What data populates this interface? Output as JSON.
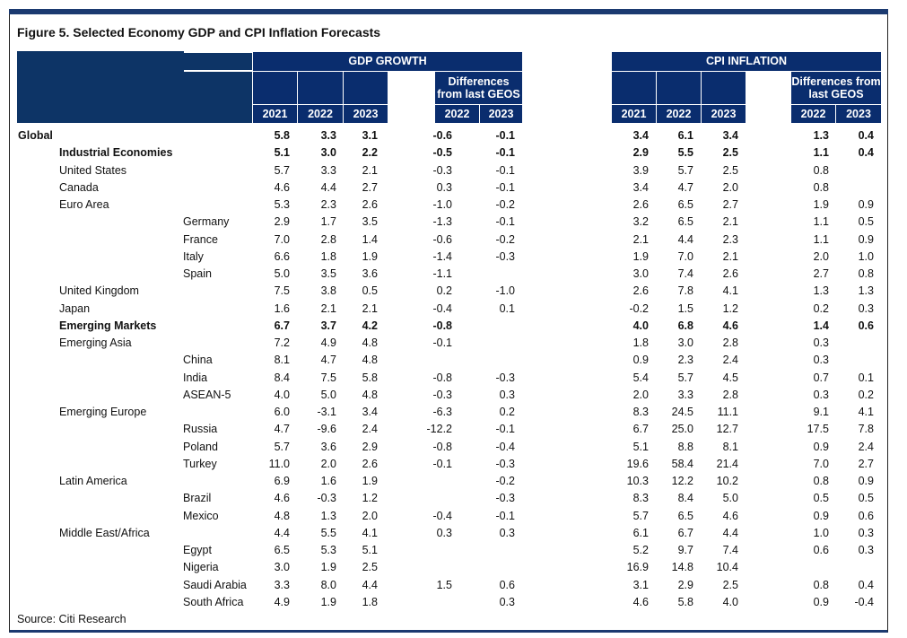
{
  "title": "Figure 5. Selected Economy GDP and CPI Inflation Forecasts",
  "source": "Source: Citi Research",
  "colors": {
    "header": "#0a2d6e",
    "top_bar": "#1b3a70"
  },
  "gdp_header": "GDP GROWTH",
  "cpi_header": "CPI INFLATION",
  "diff_header": "Differences from last GEOS",
  "years": [
    "2021",
    "2022",
    "2023"
  ],
  "diff_years": [
    "2022",
    "2023"
  ],
  "rows": [
    {
      "name": "Global",
      "level": 0,
      "bold": true,
      "gdp": [
        "5.8",
        "3.3",
        "3.1",
        "-0.6",
        "-0.1"
      ],
      "cpi": [
        "3.4",
        "6.1",
        "3.4",
        "1.3",
        "0.4"
      ]
    },
    {
      "name": "Industrial Economies",
      "level": 1,
      "bold": true,
      "gdp": [
        "5.1",
        "3.0",
        "2.2",
        "-0.5",
        "-0.1"
      ],
      "cpi": [
        "2.9",
        "5.5",
        "2.5",
        "1.1",
        "0.4"
      ]
    },
    {
      "name": "United States",
      "level": 1,
      "bold": false,
      "gdp": [
        "5.7",
        "3.3",
        "2.1",
        "-0.3",
        "-0.1"
      ],
      "cpi": [
        "3.9",
        "5.7",
        "2.5",
        "0.8",
        ""
      ]
    },
    {
      "name": "Canada",
      "level": 1,
      "bold": false,
      "gdp": [
        "4.6",
        "4.4",
        "2.7",
        "0.3",
        "-0.1"
      ],
      "cpi": [
        "3.4",
        "4.7",
        "2.0",
        "0.8",
        ""
      ]
    },
    {
      "name": "Euro Area",
      "level": 1,
      "bold": false,
      "gdp": [
        "5.3",
        "2.3",
        "2.6",
        "-1.0",
        "-0.2"
      ],
      "cpi": [
        "2.6",
        "6.5",
        "2.7",
        "1.9",
        "0.9"
      ]
    },
    {
      "name": "Germany",
      "level": 2,
      "bold": false,
      "gdp": [
        "2.9",
        "1.7",
        "3.5",
        "-1.3",
        "-0.1"
      ],
      "cpi": [
        "3.2",
        "6.5",
        "2.1",
        "1.1",
        "0.5"
      ]
    },
    {
      "name": "France",
      "level": 2,
      "bold": false,
      "gdp": [
        "7.0",
        "2.8",
        "1.4",
        "-0.6",
        "-0.2"
      ],
      "cpi": [
        "2.1",
        "4.4",
        "2.3",
        "1.1",
        "0.9"
      ]
    },
    {
      "name": "Italy",
      "level": 2,
      "bold": false,
      "gdp": [
        "6.6",
        "1.8",
        "1.9",
        "-1.4",
        "-0.3"
      ],
      "cpi": [
        "1.9",
        "7.0",
        "2.1",
        "2.0",
        "1.0"
      ]
    },
    {
      "name": "Spain",
      "level": 2,
      "bold": false,
      "gdp": [
        "5.0",
        "3.5",
        "3.6",
        "-1.1",
        ""
      ],
      "cpi": [
        "3.0",
        "7.4",
        "2.6",
        "2.7",
        "0.8"
      ]
    },
    {
      "name": "United Kingdom",
      "level": 1,
      "bold": false,
      "gdp": [
        "7.5",
        "3.8",
        "0.5",
        "0.2",
        "-1.0"
      ],
      "cpi": [
        "2.6",
        "7.8",
        "4.1",
        "1.3",
        "1.3"
      ]
    },
    {
      "name": "Japan",
      "level": 1,
      "bold": false,
      "gdp": [
        "1.6",
        "2.1",
        "2.1",
        "-0.4",
        "0.1"
      ],
      "cpi": [
        "-0.2",
        "1.5",
        "1.2",
        "0.2",
        "0.3"
      ]
    },
    {
      "name": "Emerging Markets",
      "level": 1,
      "bold": true,
      "gdp": [
        "6.7",
        "3.7",
        "4.2",
        "-0.8",
        ""
      ],
      "cpi": [
        "4.0",
        "6.8",
        "4.6",
        "1.4",
        "0.6"
      ]
    },
    {
      "name": "Emerging Asia",
      "level": 1,
      "bold": false,
      "gdp": [
        "7.2",
        "4.9",
        "4.8",
        "-0.1",
        ""
      ],
      "cpi": [
        "1.8",
        "3.0",
        "2.8",
        "0.3",
        ""
      ]
    },
    {
      "name": "China",
      "level": 2,
      "bold": false,
      "gdp": [
        "8.1",
        "4.7",
        "4.8",
        "",
        ""
      ],
      "cpi": [
        "0.9",
        "2.3",
        "2.4",
        "0.3",
        ""
      ]
    },
    {
      "name": "India",
      "level": 2,
      "bold": false,
      "gdp": [
        "8.4",
        "7.5",
        "5.8",
        "-0.8",
        "-0.3"
      ],
      "cpi": [
        "5.4",
        "5.7",
        "4.5",
        "0.7",
        "0.1"
      ]
    },
    {
      "name": "ASEAN-5",
      "level": 2,
      "bold": false,
      "gdp": [
        "4.0",
        "5.0",
        "4.8",
        "-0.3",
        "0.3"
      ],
      "cpi": [
        "2.0",
        "3.3",
        "2.8",
        "0.3",
        "0.2"
      ]
    },
    {
      "name": "Emerging Europe",
      "level": 1,
      "bold": false,
      "gdp": [
        "6.0",
        "-3.1",
        "3.4",
        "-6.3",
        "0.2"
      ],
      "cpi": [
        "8.3",
        "24.5",
        "11.1",
        "9.1",
        "4.1"
      ]
    },
    {
      "name": "Russia",
      "level": 2,
      "bold": false,
      "gdp": [
        "4.7",
        "-9.6",
        "2.4",
        "-12.2",
        "-0.1"
      ],
      "cpi": [
        "6.7",
        "25.0",
        "12.7",
        "17.5",
        "7.8"
      ]
    },
    {
      "name": "Poland",
      "level": 2,
      "bold": false,
      "gdp": [
        "5.7",
        "3.6",
        "2.9",
        "-0.8",
        "-0.4"
      ],
      "cpi": [
        "5.1",
        "8.8",
        "8.1",
        "0.9",
        "2.4"
      ]
    },
    {
      "name": "Turkey",
      "level": 2,
      "bold": false,
      "gdp": [
        "11.0",
        "2.0",
        "2.6",
        "-0.1",
        "-0.3"
      ],
      "cpi": [
        "19.6",
        "58.4",
        "21.4",
        "7.0",
        "2.7"
      ]
    },
    {
      "name": "Latin America",
      "level": 1,
      "bold": false,
      "gdp": [
        "6.9",
        "1.6",
        "1.9",
        "",
        "-0.2"
      ],
      "cpi": [
        "10.3",
        "12.2",
        "10.2",
        "0.8",
        "0.9"
      ]
    },
    {
      "name": "Brazil",
      "level": 2,
      "bold": false,
      "gdp": [
        "4.6",
        "-0.3",
        "1.2",
        "",
        "-0.3"
      ],
      "cpi": [
        "8.3",
        "8.4",
        "5.0",
        "0.5",
        "0.5"
      ]
    },
    {
      "name": "Mexico",
      "level": 2,
      "bold": false,
      "gdp": [
        "4.8",
        "1.3",
        "2.0",
        "-0.4",
        "-0.1"
      ],
      "cpi": [
        "5.7",
        "6.5",
        "4.6",
        "0.9",
        "0.6"
      ]
    },
    {
      "name": "Middle East/Africa",
      "level": 1,
      "bold": false,
      "gdp": [
        "4.4",
        "5.5",
        "4.1",
        "0.3",
        "0.3"
      ],
      "cpi": [
        "6.1",
        "6.7",
        "4.4",
        "1.0",
        "0.3"
      ]
    },
    {
      "name": "Egypt",
      "level": 2,
      "bold": false,
      "gdp": [
        "6.5",
        "5.3",
        "5.1",
        "",
        ""
      ],
      "cpi": [
        "5.2",
        "9.7",
        "7.4",
        "0.6",
        "0.3"
      ]
    },
    {
      "name": "Nigeria",
      "level": 2,
      "bold": false,
      "gdp": [
        "3.0",
        "1.9",
        "2.5",
        "",
        ""
      ],
      "cpi": [
        "16.9",
        "14.8",
        "10.4",
        "",
        ""
      ]
    },
    {
      "name": "Saudi Arabia",
      "level": 2,
      "bold": false,
      "gdp": [
        "3.3",
        "8.0",
        "4.4",
        "1.5",
        "0.6"
      ],
      "cpi": [
        "3.1",
        "2.9",
        "2.5",
        "0.8",
        "0.4"
      ]
    },
    {
      "name": "South Africa",
      "level": 2,
      "bold": false,
      "gdp": [
        "4.9",
        "1.9",
        "1.8",
        "",
        "0.3"
      ],
      "cpi": [
        "4.6",
        "5.8",
        "4.0",
        "0.9",
        "-0.4"
      ]
    }
  ]
}
